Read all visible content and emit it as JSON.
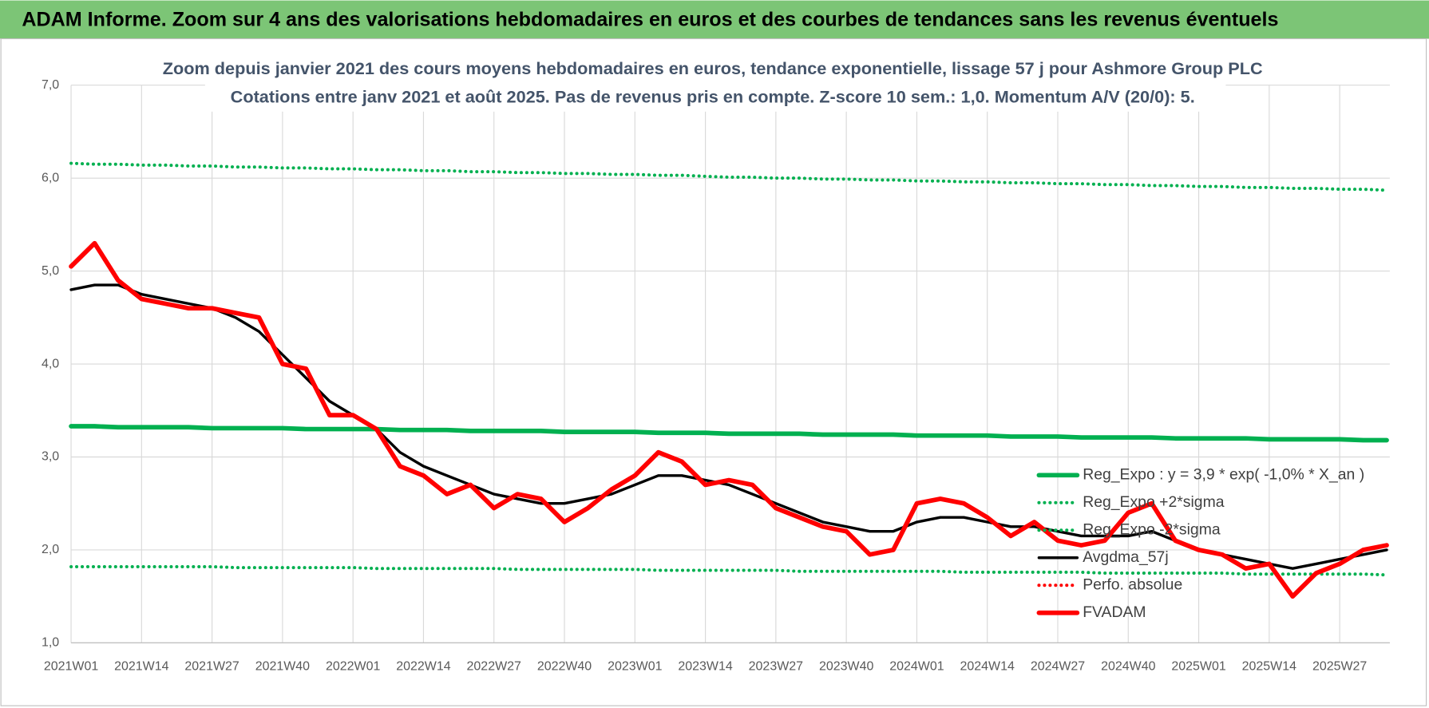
{
  "header": {
    "title": "ADAM Informe. Zoom sur 4 ans des valorisations hebdomadaires en euros et des courbes de tendances sans les revenus éventuels"
  },
  "chart_data": {
    "type": "line",
    "title": "Zoom depuis janvier 2021 des cours moyens hebdomadaires en euros, tendance exponentielle, lissage 57 j pour Ashmore Group PLC",
    "subtitle": "Cotations entre janv 2021 et août 2025. Pas de revenus pris en compte. Z-score 10 sem.: 1,0. Momentum A/V (20/0): 5.",
    "categories": [
      "2021W01",
      null,
      null,
      "2021W14",
      null,
      null,
      "2021W27",
      null,
      null,
      "2021W40",
      null,
      null,
      "2022W01",
      null,
      null,
      "2022W14",
      null,
      null,
      "2022W27",
      null,
      null,
      "2022W40",
      null,
      null,
      "2023W01",
      null,
      null,
      "2023W14",
      null,
      null,
      "2023W27",
      null,
      null,
      "2023W40",
      null,
      null,
      "2024W01",
      null,
      null,
      "2024W14",
      null,
      null,
      "2024W27",
      null,
      null,
      "2024W40",
      null,
      null,
      "2025W01",
      null,
      null,
      "2025W14",
      null,
      null,
      "2025W27",
      null,
      null
    ],
    "ylim": [
      1,
      7
    ],
    "yticks": [
      {
        "value": 1,
        "label": "1,0"
      },
      {
        "value": 2,
        "label": "2,0"
      },
      {
        "value": 3,
        "label": "3,0"
      },
      {
        "value": 4,
        "label": "4,0"
      },
      {
        "value": 5,
        "label": "5,0"
      },
      {
        "value": 6,
        "label": "6,0"
      },
      {
        "value": 7,
        "label": "7,0"
      }
    ],
    "grid": true,
    "series": [
      {
        "name": "Reg_Expo : y = 3,9 * exp( -1,0% * X_an )",
        "color": "#00b050",
        "dash": "solid",
        "values": [
          3.33,
          3.33,
          3.32,
          3.32,
          3.32,
          3.32,
          3.31,
          3.31,
          3.31,
          3.31,
          3.3,
          3.3,
          3.3,
          3.3,
          3.29,
          3.29,
          3.29,
          3.28,
          3.28,
          3.28,
          3.28,
          3.27,
          3.27,
          3.27,
          3.27,
          3.26,
          3.26,
          3.26,
          3.25,
          3.25,
          3.25,
          3.25,
          3.24,
          3.24,
          3.24,
          3.24,
          3.23,
          3.23,
          3.23,
          3.23,
          3.22,
          3.22,
          3.22,
          3.21,
          3.21,
          3.21,
          3.21,
          3.2,
          3.2,
          3.2,
          3.2,
          3.19,
          3.19,
          3.19,
          3.19,
          3.18,
          3.18
        ]
      },
      {
        "name": "Reg_Expo +2*sigma",
        "color": "#00b050",
        "dash": "dotted",
        "values": [
          6.16,
          6.15,
          6.15,
          6.14,
          6.14,
          6.13,
          6.13,
          6.12,
          6.12,
          6.11,
          6.11,
          6.1,
          6.1,
          6.09,
          6.09,
          6.08,
          6.08,
          6.07,
          6.07,
          6.06,
          6.06,
          6.05,
          6.05,
          6.04,
          6.04,
          6.03,
          6.03,
          6.02,
          6.01,
          6.01,
          6.0,
          6.0,
          5.99,
          5.99,
          5.98,
          5.98,
          5.97,
          5.97,
          5.96,
          5.96,
          5.95,
          5.95,
          5.94,
          5.94,
          5.93,
          5.93,
          5.92,
          5.92,
          5.91,
          5.91,
          5.9,
          5.9,
          5.89,
          5.89,
          5.88,
          5.88,
          5.87
        ]
      },
      {
        "name": "Reg_Expo -2*sigma",
        "color": "#00b050",
        "dash": "dotted",
        "values": [
          1.82,
          1.82,
          1.82,
          1.82,
          1.82,
          1.82,
          1.82,
          1.81,
          1.81,
          1.81,
          1.81,
          1.81,
          1.81,
          1.8,
          1.8,
          1.8,
          1.8,
          1.8,
          1.8,
          1.79,
          1.79,
          1.79,
          1.79,
          1.79,
          1.79,
          1.78,
          1.78,
          1.78,
          1.78,
          1.78,
          1.78,
          1.77,
          1.77,
          1.77,
          1.77,
          1.77,
          1.77,
          1.77,
          1.76,
          1.76,
          1.76,
          1.76,
          1.76,
          1.76,
          1.75,
          1.75,
          1.75,
          1.75,
          1.75,
          1.75,
          1.74,
          1.74,
          1.74,
          1.74,
          1.74,
          1.74,
          1.73
        ]
      },
      {
        "name": "Avgdma_57j",
        "color": "#000000",
        "dash": "solid",
        "values": [
          4.8,
          4.85,
          4.85,
          4.75,
          4.7,
          4.65,
          4.6,
          4.5,
          4.35,
          4.1,
          3.85,
          3.6,
          3.45,
          3.3,
          3.05,
          2.9,
          2.8,
          2.7,
          2.6,
          2.55,
          2.5,
          2.5,
          2.55,
          2.6,
          2.7,
          2.8,
          2.8,
          2.75,
          2.7,
          2.6,
          2.5,
          2.4,
          2.3,
          2.25,
          2.2,
          2.2,
          2.3,
          2.35,
          2.35,
          2.3,
          2.25,
          2.25,
          2.2,
          2.15,
          2.15,
          2.15,
          2.2,
          2.1,
          2.0,
          1.95,
          1.9,
          1.85,
          1.8,
          1.85,
          1.9,
          1.95,
          2.0
        ]
      },
      {
        "name": "Perfo. absolue",
        "color": "#ff0000",
        "dash": "dotted",
        "values": [
          null,
          null,
          null,
          null,
          null,
          null,
          null,
          null,
          null,
          null,
          null,
          null,
          null,
          null,
          null,
          null,
          null,
          null,
          null,
          null,
          null,
          null,
          null,
          null,
          null,
          null,
          null,
          null,
          null,
          null,
          null,
          null,
          null,
          null,
          null,
          null,
          null,
          null,
          null,
          null,
          null,
          null,
          null,
          null,
          null,
          null,
          null,
          null,
          null,
          null,
          null,
          null,
          null,
          null,
          null,
          null,
          null
        ]
      },
      {
        "name": "FVADAM",
        "color": "#ff0000",
        "dash": "solid",
        "values": [
          5.05,
          5.3,
          4.9,
          4.7,
          4.65,
          4.6,
          4.6,
          4.55,
          4.5,
          4.0,
          3.95,
          3.45,
          3.45,
          3.3,
          2.9,
          2.8,
          2.6,
          2.7,
          2.45,
          2.6,
          2.55,
          2.3,
          2.45,
          2.65,
          2.8,
          3.05,
          2.95,
          2.7,
          2.75,
          2.7,
          2.45,
          2.35,
          2.25,
          2.2,
          1.95,
          2.0,
          2.5,
          2.55,
          2.5,
          2.35,
          2.15,
          2.3,
          2.1,
          2.05,
          2.1,
          2.4,
          2.5,
          2.1,
          2.0,
          1.95,
          1.8,
          1.85,
          1.5,
          1.75,
          1.85,
          2.0,
          2.05
        ]
      }
    ]
  }
}
